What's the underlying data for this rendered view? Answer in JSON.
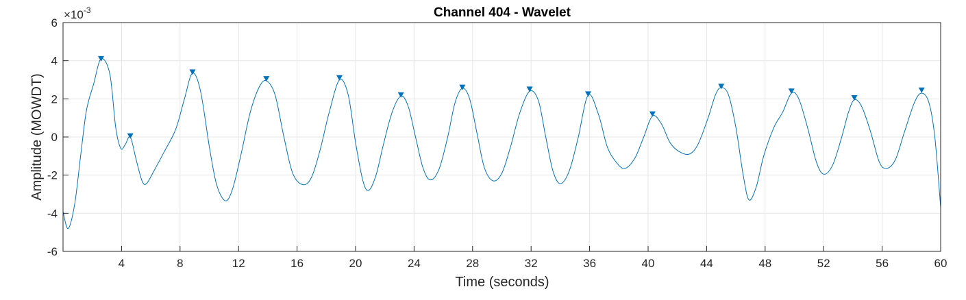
{
  "chart_data": {
    "type": "line",
    "title": "Channel 404 - Wavelet",
    "xlabel": "Time (seconds)",
    "ylabel": "Amplitude (MOWDT)",
    "y_exponent_prefix": "×10",
    "y_exponent_power": "-3",
    "xlim": [
      0,
      60
    ],
    "ylim": [
      -6,
      6
    ],
    "x_ticks": [
      4,
      8,
      12,
      16,
      20,
      24,
      28,
      32,
      36,
      40,
      44,
      48,
      52,
      56,
      60
    ],
    "x_tick_labels": [
      "4",
      "8",
      "12",
      "16",
      "20",
      "24",
      "28",
      "32",
      "36",
      "40",
      "44",
      "48",
      "52",
      "56",
      "60"
    ],
    "y_ticks": [
      -6,
      -4,
      -2,
      0,
      2,
      4,
      6
    ],
    "y_tick_labels": [
      "-6",
      "-4",
      "-2",
      "0",
      "2",
      "4",
      "6"
    ],
    "grid": true,
    "line_color": "#0072BD",
    "marker_color": "#0072BD",
    "series": [
      {
        "marker": "none",
        "points": [
          [
            0,
            -3.9
          ],
          [
            0.35,
            -4.8
          ],
          [
            0.8,
            -3.5
          ],
          [
            1.2,
            -1.0
          ],
          [
            1.6,
            1.4
          ],
          [
            2.1,
            2.8
          ],
          [
            2.6,
            4.1
          ],
          [
            3.2,
            3.3
          ],
          [
            3.6,
            0.5
          ],
          [
            3.95,
            -0.6
          ],
          [
            4.25,
            -0.4
          ],
          [
            4.6,
            0.0
          ],
          [
            5.0,
            -1.2
          ],
          [
            5.4,
            -2.3
          ],
          [
            5.7,
            -2.45
          ],
          [
            6.2,
            -1.8
          ],
          [
            6.9,
            -0.8
          ],
          [
            7.7,
            0.4
          ],
          [
            8.3,
            2.0
          ],
          [
            8.85,
            3.35
          ],
          [
            9.4,
            2.4
          ],
          [
            10.0,
            -0.5
          ],
          [
            10.5,
            -2.5
          ],
          [
            11.1,
            -3.35
          ],
          [
            11.6,
            -2.7
          ],
          [
            12.2,
            -0.8
          ],
          [
            12.8,
            1.3
          ],
          [
            13.4,
            2.6
          ],
          [
            13.9,
            2.95
          ],
          [
            14.5,
            2.2
          ],
          [
            15.1,
            0.0
          ],
          [
            15.7,
            -1.9
          ],
          [
            16.4,
            -2.5
          ],
          [
            17.0,
            -2.1
          ],
          [
            17.6,
            -0.6
          ],
          [
            18.2,
            1.3
          ],
          [
            18.9,
            3.0
          ],
          [
            19.5,
            2.2
          ],
          [
            20.0,
            -0.3
          ],
          [
            20.5,
            -2.3
          ],
          [
            20.9,
            -2.8
          ],
          [
            21.4,
            -2.0
          ],
          [
            21.9,
            -0.4
          ],
          [
            22.5,
            1.3
          ],
          [
            23.1,
            2.15
          ],
          [
            23.6,
            1.6
          ],
          [
            24.1,
            0.0
          ],
          [
            24.6,
            -1.6
          ],
          [
            25.1,
            -2.25
          ],
          [
            25.7,
            -1.7
          ],
          [
            26.3,
            0.0
          ],
          [
            26.8,
            1.8
          ],
          [
            27.3,
            2.55
          ],
          [
            27.8,
            2.0
          ],
          [
            28.3,
            0.2
          ],
          [
            28.8,
            -1.6
          ],
          [
            29.4,
            -2.3
          ],
          [
            30.0,
            -1.9
          ],
          [
            30.6,
            -0.5
          ],
          [
            31.2,
            1.2
          ],
          [
            31.9,
            2.4
          ],
          [
            32.5,
            1.9
          ],
          [
            33.0,
            0.0
          ],
          [
            33.5,
            -1.8
          ],
          [
            34.0,
            -2.45
          ],
          [
            34.6,
            -1.8
          ],
          [
            35.2,
            -0.1
          ],
          [
            35.9,
            2.2
          ],
          [
            36.6,
            1.2
          ],
          [
            37.2,
            -0.5
          ],
          [
            37.8,
            -1.3
          ],
          [
            38.4,
            -1.65
          ],
          [
            39.1,
            -1.1
          ],
          [
            39.7,
            0.0
          ],
          [
            40.3,
            1.1
          ],
          [
            40.9,
            0.7
          ],
          [
            41.5,
            -0.3
          ],
          [
            42.1,
            -0.75
          ],
          [
            42.8,
            -0.9
          ],
          [
            43.4,
            -0.4
          ],
          [
            44.1,
            1.0
          ],
          [
            44.6,
            2.2
          ],
          [
            45.0,
            2.6
          ],
          [
            45.5,
            2.2
          ],
          [
            46.0,
            0.5
          ],
          [
            46.5,
            -2.0
          ],
          [
            46.9,
            -3.3
          ],
          [
            47.4,
            -2.6
          ],
          [
            47.9,
            -1.0
          ],
          [
            48.6,
            0.5
          ],
          [
            49.2,
            1.3
          ],
          [
            49.8,
            2.3
          ],
          [
            50.3,
            2.0
          ],
          [
            50.9,
            0.5
          ],
          [
            51.5,
            -1.3
          ],
          [
            52.0,
            -1.95
          ],
          [
            52.6,
            -1.5
          ],
          [
            53.2,
            -0.1
          ],
          [
            53.7,
            1.3
          ],
          [
            54.1,
            1.95
          ],
          [
            54.6,
            1.6
          ],
          [
            55.2,
            0.3
          ],
          [
            55.8,
            -1.3
          ],
          [
            56.3,
            -1.65
          ],
          [
            56.9,
            -1.2
          ],
          [
            57.5,
            0.2
          ],
          [
            58.2,
            1.8
          ],
          [
            58.7,
            2.3
          ],
          [
            59.2,
            1.8
          ],
          [
            59.6,
            0.0
          ],
          [
            60.0,
            -3.7
          ]
        ]
      },
      {
        "marker": "triangle-down",
        "points": [
          [
            2.6,
            4.1
          ],
          [
            4.6,
            0.05
          ],
          [
            8.85,
            3.4
          ],
          [
            13.9,
            3.05
          ],
          [
            18.9,
            3.1
          ],
          [
            23.1,
            2.2
          ],
          [
            27.3,
            2.6
          ],
          [
            31.9,
            2.5
          ],
          [
            35.9,
            2.25
          ],
          [
            40.3,
            1.2
          ],
          [
            45.0,
            2.65
          ],
          [
            49.8,
            2.4
          ],
          [
            54.1,
            2.05
          ],
          [
            58.7,
            2.45
          ]
        ]
      }
    ]
  }
}
